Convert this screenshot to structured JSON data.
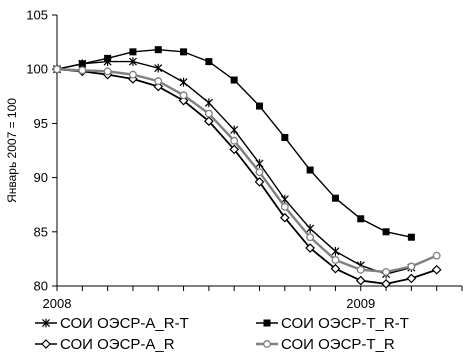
{
  "chart_data": {
    "type": "line",
    "title": "",
    "xlabel": "",
    "ylabel": "Январь 2007 = 100",
    "ylim": [
      80,
      105
    ],
    "yticks": [
      80,
      85,
      90,
      95,
      100,
      105
    ],
    "xticks": [
      {
        "label": "2008",
        "month_index": 0
      },
      {
        "label": "2009",
        "month_index": 12
      }
    ],
    "xlim": [
      0,
      16
    ],
    "grid": false,
    "legend_position": "bottom",
    "series": [
      {
        "name": "СОИ ОЭСР-A_R-T",
        "color": "#000000",
        "marker": "asterisk",
        "values": [
          100,
          100.5,
          100.7,
          100.7,
          100.1,
          98.8,
          96.9,
          94.4,
          91.3,
          88.0,
          85.3,
          83.2,
          81.9,
          81.1,
          81.7
        ]
      },
      {
        "name": "СОИ ОЭСР-T_R-T",
        "color": "#000000",
        "marker": "square",
        "values": [
          100,
          100.5,
          101.0,
          101.6,
          101.8,
          101.6,
          100.7,
          99.0,
          96.6,
          93.7,
          90.7,
          88.1,
          86.2,
          85.0,
          84.5
        ]
      },
      {
        "name": "СОИ ОЭСР-A_R",
        "color": "#000000",
        "marker": "diamond",
        "values": [
          100,
          99.8,
          99.5,
          99.1,
          98.4,
          97.1,
          95.2,
          92.6,
          89.6,
          86.3,
          83.5,
          81.6,
          80.5,
          80.2,
          80.7,
          81.5
        ]
      },
      {
        "name": "СОИ ОЭСР-T_R",
        "color": "#808080",
        "marker": "circle",
        "values": [
          100,
          99.9,
          99.8,
          99.5,
          98.9,
          97.6,
          95.9,
          93.4,
          90.5,
          87.3,
          84.5,
          82.4,
          81.5,
          81.3,
          81.8,
          82.8
        ]
      }
    ]
  }
}
